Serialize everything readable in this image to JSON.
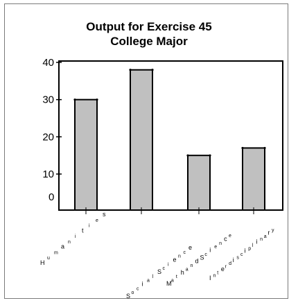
{
  "chart_data": {
    "type": "bar",
    "title": "Output for Exercise 45",
    "subtitle": "College Major",
    "categories": [
      "Humanities",
      "Social Science",
      "Math and Science",
      "Interdisciplinary"
    ],
    "values": [
      30,
      38,
      15,
      17
    ],
    "ylim": [
      0,
      40
    ],
    "yticks": [
      10,
      20,
      30,
      40
    ],
    "zero_label": "0",
    "xlabel": "",
    "ylabel": "",
    "grid": false,
    "legend": "none",
    "bar_color": "#c0c0c0",
    "edge_color": "#000000"
  }
}
